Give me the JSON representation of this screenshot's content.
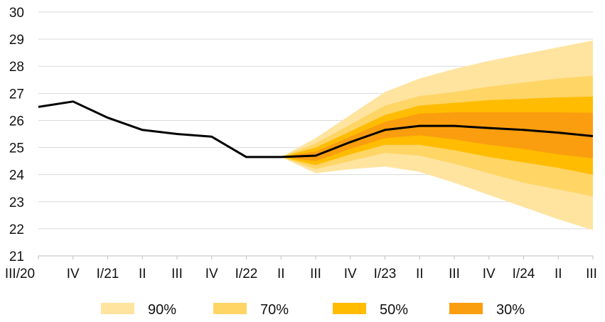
{
  "chart_data": {
    "type": "area",
    "title": "",
    "xlabel": "",
    "ylabel": "",
    "ylim": [
      21,
      30
    ],
    "yticks": [
      21,
      22,
      23,
      24,
      25,
      26,
      27,
      28,
      29,
      30
    ],
    "grid": true,
    "legend_position": "bottom",
    "categories": [
      "III/20",
      "IV",
      "I/21",
      "II",
      "III",
      "IV",
      "I/22",
      "II",
      "III",
      "IV",
      "I/23",
      "II",
      "III",
      "IV",
      "I/24",
      "II",
      "III"
    ],
    "series": [
      {
        "values": [
          26.5,
          26.7,
          26.1,
          25.65,
          25.5,
          25.4,
          24.65,
          24.65,
          24.7,
          25.2,
          25.65,
          25.8,
          25.8,
          25.72,
          25.65,
          25.55,
          25.42
        ]
      }
    ],
    "fan_start_index": 7,
    "fan_bands": [
      {
        "label": "90%",
        "color": "#ffe4a0",
        "lower": [
          24.65,
          24.05,
          24.2,
          24.3,
          24.1,
          23.7,
          23.25,
          22.8,
          22.35,
          21.95
        ],
        "upper": [
          24.65,
          25.35,
          26.2,
          27.05,
          27.55,
          27.9,
          28.2,
          28.45,
          28.7,
          28.95
        ]
      },
      {
        "label": "70%",
        "color": "#ffd566",
        "lower": [
          24.65,
          24.2,
          24.5,
          24.8,
          24.7,
          24.4,
          24.05,
          23.7,
          23.45,
          23.2
        ],
        "upper": [
          24.65,
          25.15,
          25.85,
          26.55,
          26.9,
          27.05,
          27.25,
          27.4,
          27.55,
          27.65
        ]
      },
      {
        "label": "50%",
        "color": "#ffbc00",
        "lower": [
          24.65,
          24.35,
          24.75,
          25.1,
          25.1,
          24.9,
          24.65,
          24.45,
          24.25,
          24.0
        ],
        "upper": [
          24.65,
          25.0,
          25.6,
          26.2,
          26.55,
          26.65,
          26.75,
          26.8,
          26.85,
          26.88
        ]
      },
      {
        "label": "30%",
        "color": "#fa9d0f",
        "lower": [
          24.65,
          24.5,
          24.95,
          25.35,
          25.45,
          25.3,
          25.1,
          24.95,
          24.75,
          24.6
        ],
        "upper": [
          24.65,
          24.85,
          25.4,
          25.95,
          26.25,
          26.3,
          26.3,
          26.3,
          26.3,
          26.28
        ]
      }
    ],
    "legend": [
      "90%",
      "70%",
      "50%",
      "30%"
    ]
  },
  "colors": {
    "line": "#000000",
    "grid": "#d9d9d9",
    "axis": "#bfbfbf"
  }
}
